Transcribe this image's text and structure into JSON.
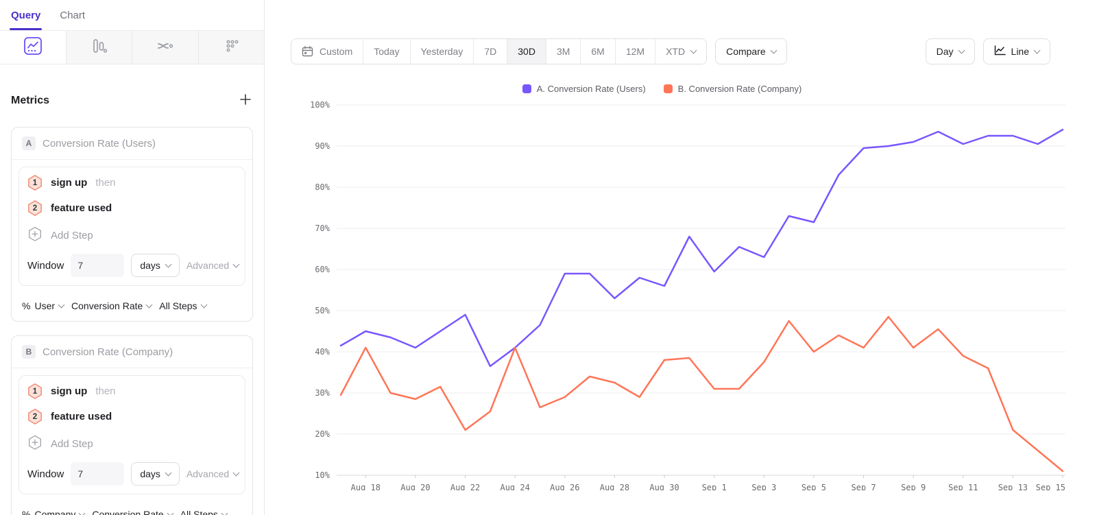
{
  "tabs": {
    "query": "Query",
    "chart": "Chart"
  },
  "chart_type_tabs": [
    {
      "name": "line-chart",
      "selected": true
    },
    {
      "name": "bar-chart",
      "selected": false
    },
    {
      "name": "flow-chart",
      "selected": false
    },
    {
      "name": "dots-grid",
      "selected": false
    }
  ],
  "icons": {
    "custom_range": "calendar-icon",
    "metrics_add": "plus-icon",
    "add_step": "hexagon-plus-icon",
    "dropdowns": "chevron-down-icon",
    "chart_style_button": "line-chart-icon"
  },
  "colors": {
    "accent_purple": "#4B2FC9",
    "series_a": "#7856FF",
    "series_b": "#FF7557"
  },
  "metrics": {
    "title": "Metrics",
    "add_button": "+",
    "cards": [
      {
        "badge": "A",
        "label": "Conversion Rate (Users)",
        "steps": [
          {
            "num": "1",
            "event": "sign up",
            "suffix": "then"
          },
          {
            "num": "2",
            "event": "feature used",
            "suffix": ""
          }
        ],
        "add_step_label": "Add Step",
        "window_label": "Window",
        "window_value": "7",
        "window_unit": "days",
        "advanced_label": "Advanced",
        "measure": {
          "prefix": "%",
          "entity": "User",
          "metric": "Conversion Rate",
          "steps": "All Steps"
        }
      },
      {
        "badge": "B",
        "label": "Conversion Rate (Company)",
        "steps": [
          {
            "num": "1",
            "event": "sign up",
            "suffix": "then"
          },
          {
            "num": "2",
            "event": "feature used",
            "suffix": ""
          }
        ],
        "add_step_label": "Add Step",
        "window_label": "Window",
        "window_value": "7",
        "window_unit": "days",
        "advanced_label": "Advanced",
        "measure": {
          "prefix": "%",
          "entity": "Company",
          "metric": "Conversion Rate",
          "steps": "All Steps"
        }
      }
    ]
  },
  "toolbar": {
    "ranges": [
      {
        "label": "Custom",
        "icon": "calendar",
        "active": false,
        "chevron": false
      },
      {
        "label": "Today",
        "icon": "",
        "active": false,
        "chevron": false
      },
      {
        "label": "Yesterday",
        "icon": "",
        "active": false,
        "chevron": false
      },
      {
        "label": "7D",
        "icon": "",
        "active": false,
        "chevron": false
      },
      {
        "label": "30D",
        "icon": "",
        "active": true,
        "chevron": false
      },
      {
        "label": "3M",
        "icon": "",
        "active": false,
        "chevron": false
      },
      {
        "label": "6M",
        "icon": "",
        "active": false,
        "chevron": false
      },
      {
        "label": "12M",
        "icon": "",
        "active": false,
        "chevron": false
      },
      {
        "label": "XTD",
        "icon": "",
        "active": false,
        "chevron": true
      }
    ],
    "compare_label": "Compare",
    "granularity_label": "Day",
    "chart_style_label": "Line"
  },
  "chart_data": {
    "type": "line",
    "x": [
      "Aug 17",
      "Aug 18",
      "Aug 19",
      "Aug 20",
      "Aug 21",
      "Aug 22",
      "Aug 23",
      "Aug 24",
      "Aug 25",
      "Aug 26",
      "Aug 27",
      "Aug 28",
      "Aug 29",
      "Aug 30",
      "Aug 31",
      "Sep 1",
      "Sep 2",
      "Sep 3",
      "Sep 4",
      "Sep 5",
      "Sep 6",
      "Sep 7",
      "Sep 8",
      "Sep 9",
      "Sep 10",
      "Sep 11",
      "Sep 12",
      "Sep 13",
      "Sep 14",
      "Sep 15"
    ],
    "xtick_labels": [
      "Aug 18",
      "Aug 20",
      "Aug 22",
      "Aug 24",
      "Aug 26",
      "Aug 28",
      "Aug 30",
      "Sep 1",
      "Sep 3",
      "Sep 5",
      "Sep 7",
      "Sep 9",
      "Sep 11",
      "Sep 13",
      "Sep 15"
    ],
    "ylim": [
      10,
      100
    ],
    "yticks": [
      100,
      90,
      80,
      70,
      60,
      50,
      40,
      30,
      20,
      10
    ],
    "y_format": "percent",
    "grid": true,
    "legend_position": "top-center",
    "series": [
      {
        "name": "A. Conversion Rate (Users)",
        "color": "#7856FF",
        "values": [
          41.5,
          45,
          43.5,
          41,
          45,
          49,
          36.5,
          41,
          46.5,
          59,
          59,
          53,
          58,
          56,
          68,
          59.5,
          65.5,
          63,
          73,
          71.5,
          83,
          89.5,
          90,
          91,
          93.5,
          90.5,
          92.5,
          92.5,
          90.5,
          94
        ]
      },
      {
        "name": "B. Conversion Rate (Company)",
        "color": "#FF7557",
        "values": [
          29.5,
          41,
          30,
          28.5,
          31.5,
          21,
          25.5,
          41,
          26.5,
          29,
          34,
          32.5,
          29,
          38,
          38.5,
          31,
          31,
          37.5,
          47.5,
          40,
          44,
          41,
          48.5,
          41,
          45.5,
          39,
          36,
          21,
          16,
          11
        ]
      }
    ]
  }
}
